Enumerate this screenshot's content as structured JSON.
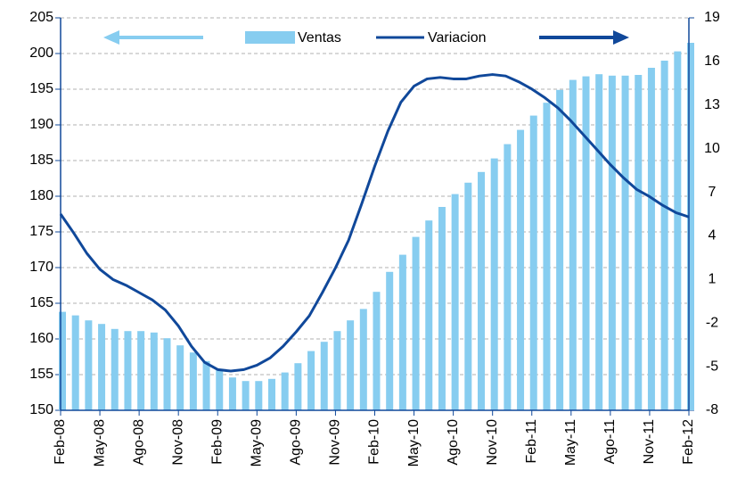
{
  "chart_data": {
    "type": "bar-line",
    "categories": [
      "Feb-08",
      null,
      null,
      "May-08",
      null,
      null,
      "Ago-08",
      null,
      null,
      "Nov-08",
      null,
      null,
      "Feb-09",
      null,
      null,
      "May-09",
      null,
      null,
      "Ago-09",
      null,
      null,
      "Nov-09",
      null,
      null,
      "Feb-10",
      null,
      null,
      "May-10",
      null,
      null,
      "Ago-10",
      null,
      null,
      "Nov-10",
      null,
      null,
      "Feb-11",
      null,
      null,
      "May-11",
      null,
      null,
      "Ago-11",
      null,
      null,
      "Nov-11",
      null,
      null,
      "Feb-12"
    ],
    "series": [
      {
        "name": "Ventas",
        "type": "bar",
        "axis": "y",
        "color": "#87cdf0",
        "values": [
          163.8,
          163.3,
          162.6,
          162.1,
          161.4,
          161.1,
          161.1,
          160.9,
          160.1,
          159.1,
          158.1,
          156.9,
          155.7,
          154.6,
          154.1,
          154.1,
          154.4,
          155.3,
          156.6,
          158.3,
          159.6,
          161.1,
          162.6,
          164.2,
          166.6,
          169.4,
          171.8,
          174.3,
          176.6,
          178.5,
          180.3,
          181.9,
          183.4,
          185.3,
          187.3,
          189.3,
          191.3,
          193.1,
          194.9,
          196.3,
          196.8,
          197.1,
          196.9,
          196.9,
          197.0,
          198.0,
          199.0,
          200.3,
          201.5
        ]
      },
      {
        "name": "Variacion",
        "type": "line",
        "axis": "y2",
        "color": "#10489a",
        "values": [
          5.5,
          4.2,
          2.8,
          1.7,
          1.0,
          0.6,
          0.1,
          -0.4,
          -1.1,
          -2.2,
          -3.6,
          -4.7,
          -5.2,
          -5.3,
          -5.2,
          -4.9,
          -4.4,
          -3.6,
          -2.6,
          -1.5,
          0.1,
          1.8,
          3.7,
          6.2,
          8.8,
          11.2,
          13.2,
          14.3,
          14.8,
          14.9,
          14.8,
          14.8,
          15.0,
          15.1,
          15.0,
          14.6,
          14.1,
          13.5,
          12.8,
          11.9,
          10.9,
          9.9,
          8.9,
          8.0,
          7.2,
          6.7,
          6.1,
          5.6,
          5.3
        ]
      }
    ],
    "ylim": [
      150,
      205
    ],
    "yticks": [
      150,
      155,
      160,
      165,
      170,
      175,
      180,
      185,
      190,
      195,
      200,
      205
    ],
    "y2lim": [
      -8,
      19
    ],
    "y2ticks": [
      -8,
      -5,
      -2,
      1,
      4,
      7,
      10,
      13,
      16,
      19
    ],
    "grid": true
  }
}
